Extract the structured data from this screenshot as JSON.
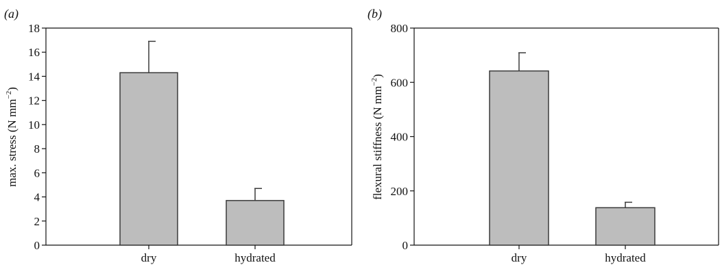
{
  "colors": {
    "bar_fill": "#bdbdbd",
    "bar_stroke": "#3a3a3a",
    "axis": "#111111"
  },
  "chart_data": [
    {
      "type": "bar",
      "panel_label": "(a)",
      "categories": [
        "dry",
        "hydrated"
      ],
      "values": [
        14.3,
        3.7
      ],
      "errors": [
        2.6,
        1.0
      ],
      "ylabel": "max. stress (N mm",
      "ylabel_sup": "−2",
      "ylabel_close": ")",
      "ylim": [
        0,
        18
      ],
      "yticks": [
        0,
        2,
        4,
        6,
        8,
        10,
        12,
        14,
        16,
        18
      ],
      "grid": false
    },
    {
      "type": "bar",
      "panel_label": "(b)",
      "categories": [
        "dry",
        "hydrated"
      ],
      "values": [
        642,
        138
      ],
      "errors": [
        67,
        20
      ],
      "ylabel": "flexural stiffness (N mm",
      "ylabel_sup": "−2",
      "ylabel_close": ")",
      "ylim": [
        0,
        800
      ],
      "yticks": [
        0,
        200,
        400,
        600,
        800
      ],
      "grid": false
    }
  ]
}
